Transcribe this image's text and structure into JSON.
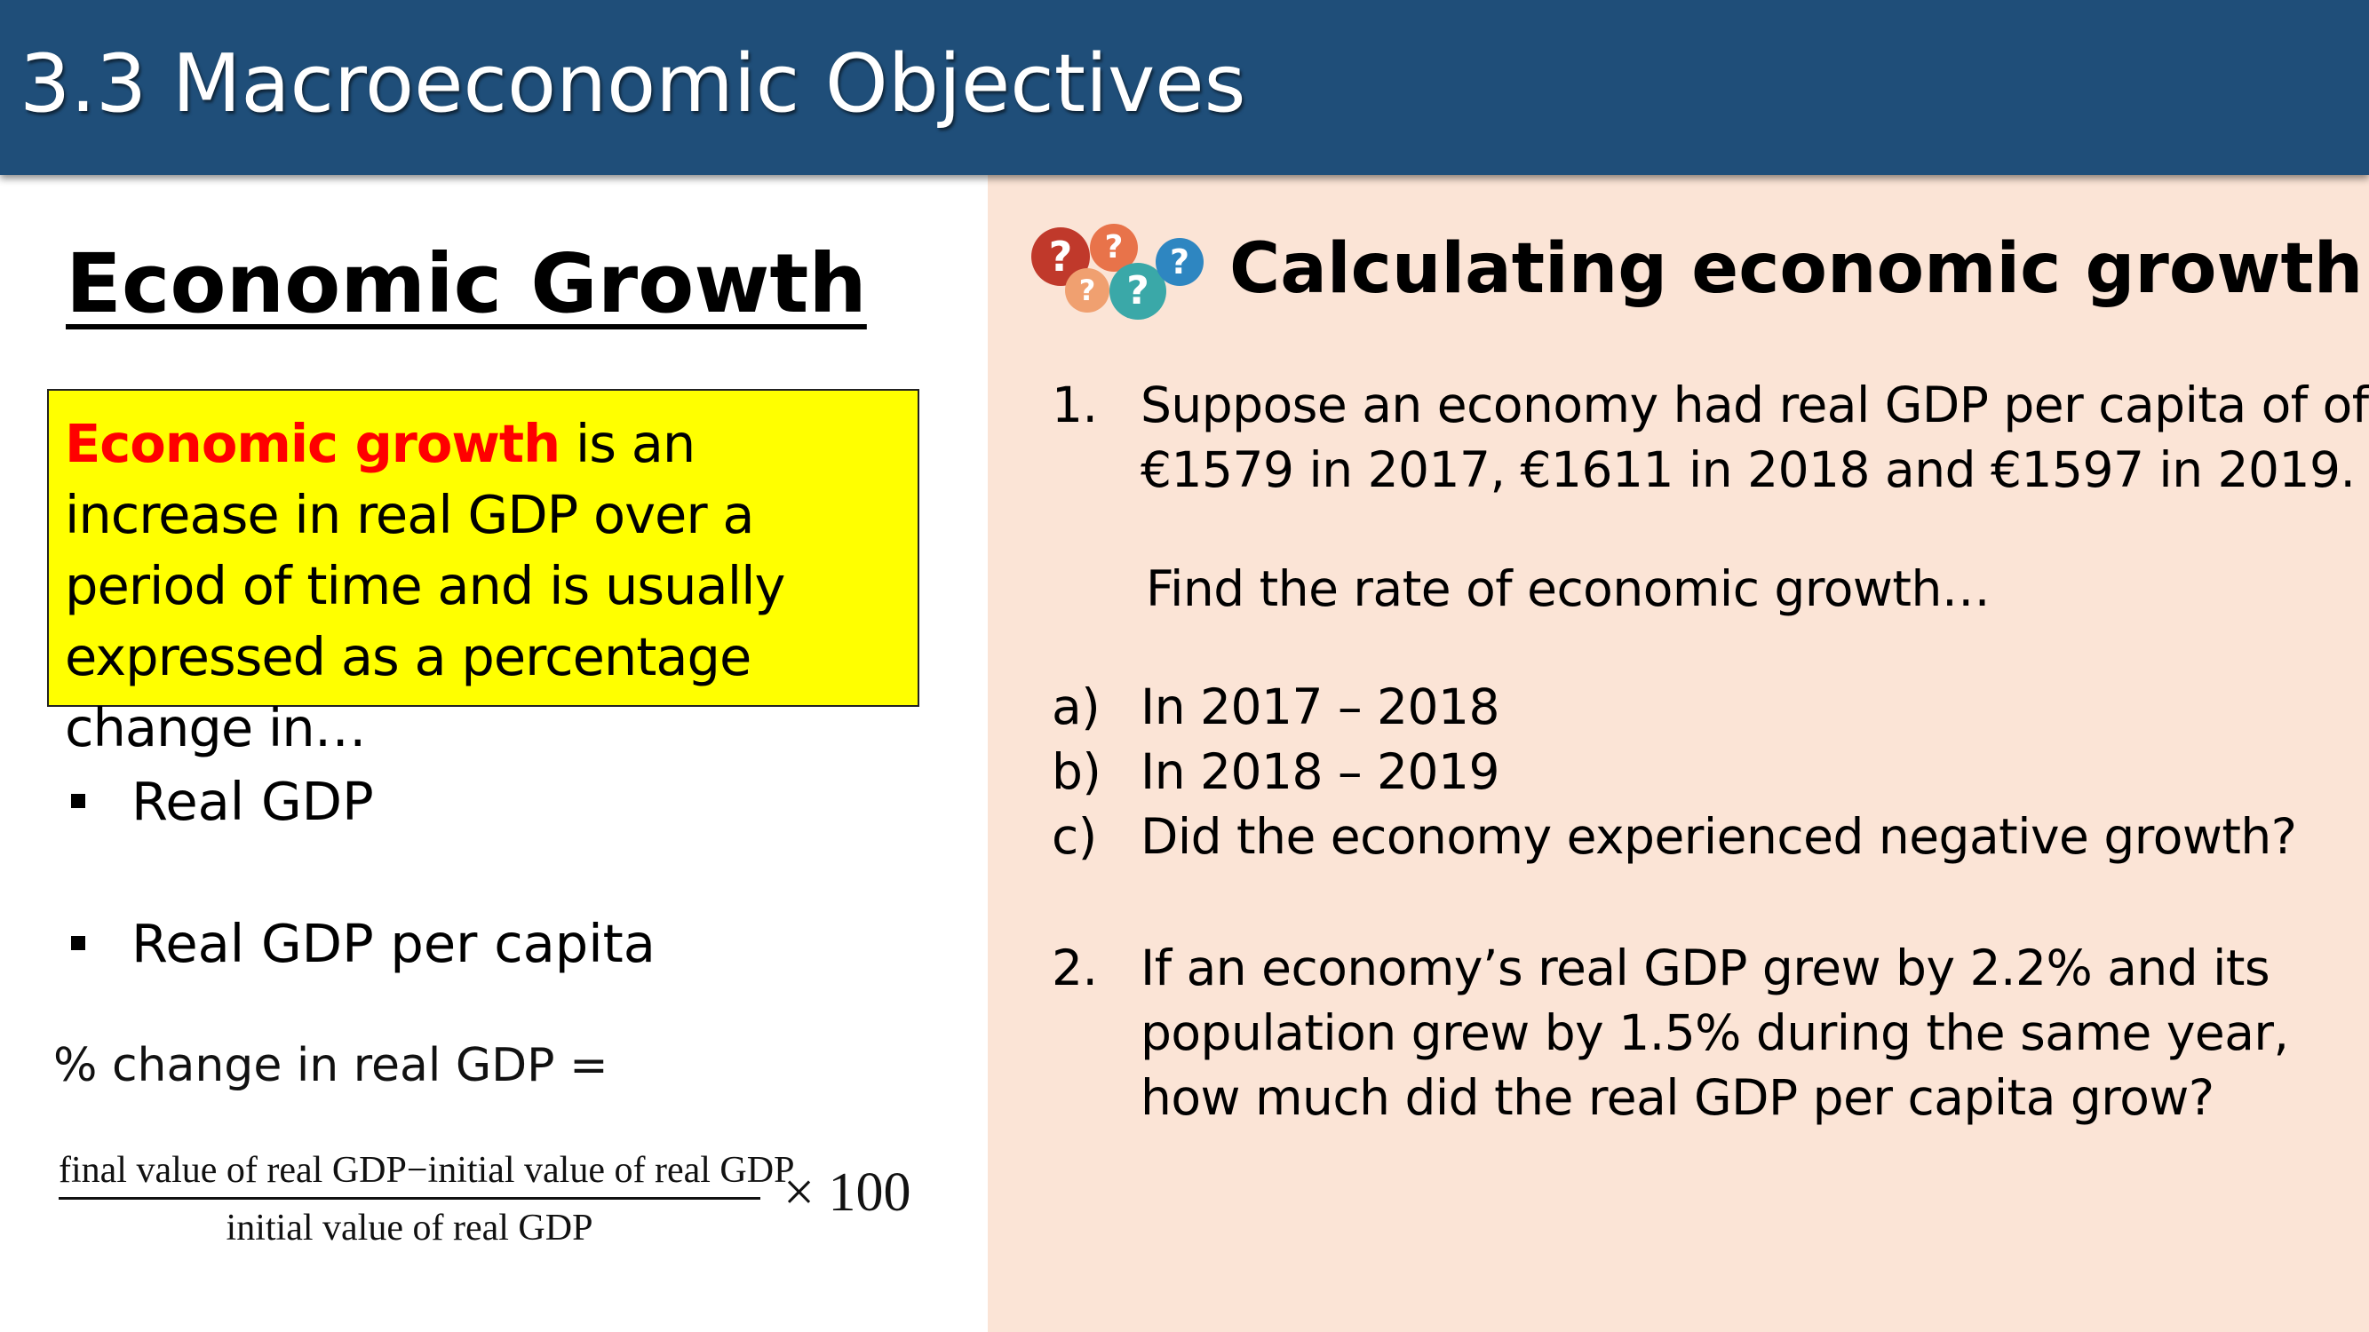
{
  "header": {
    "title": "3.3 Macroeconomic Objectives"
  },
  "left": {
    "heading": "Economic Growth",
    "definition": {
      "term": "Economic growth",
      "rest": " is an increase in real GDP over a period of time and is usually expressed as a percentage change in…"
    },
    "bullets": [
      "Real GDP",
      "Real GDP per capita"
    ],
    "formula": {
      "label": "% change in real GDP =",
      "numerator": "final value of real GDP−initial value of real GDP",
      "denominator": "initial value of real GDP",
      "multiplier": "× 100"
    }
  },
  "right": {
    "icon": "question-bubbles-icon",
    "bubble_glyph": "?",
    "title": "Calculating economic growth",
    "q1": {
      "num": "1.",
      "line1": "Suppose an economy had real GDP per capita of of",
      "line2": "€1579 in 2017, €1611 in 2018 and €1597 in 2019.",
      "prompt": "Find the rate of economic growth…"
    },
    "subs": [
      {
        "label": "a)",
        "text": "In 2017 – 2018"
      },
      {
        "label": "b)",
        "text": "In 2018 – 2019"
      },
      {
        "label": "c)",
        "text": "Did the economy experienced negative growth?"
      }
    ],
    "q2": {
      "num": "2.",
      "line1": "If an economy’s real GDP grew by 2.2% and its",
      "line2": "population grew by 1.5% during the same year,",
      "line3": "how much did the real GDP per capita grow?"
    }
  },
  "colors": {
    "header": "#1f4e79",
    "right_panel": "#fbe4d6",
    "definition_box": "#ffff00",
    "definition_term": "#ff0000",
    "bubbles": [
      "#c0392b",
      "#e8734a",
      "#f0a070",
      "#3aa8a8",
      "#2e86c1"
    ]
  }
}
